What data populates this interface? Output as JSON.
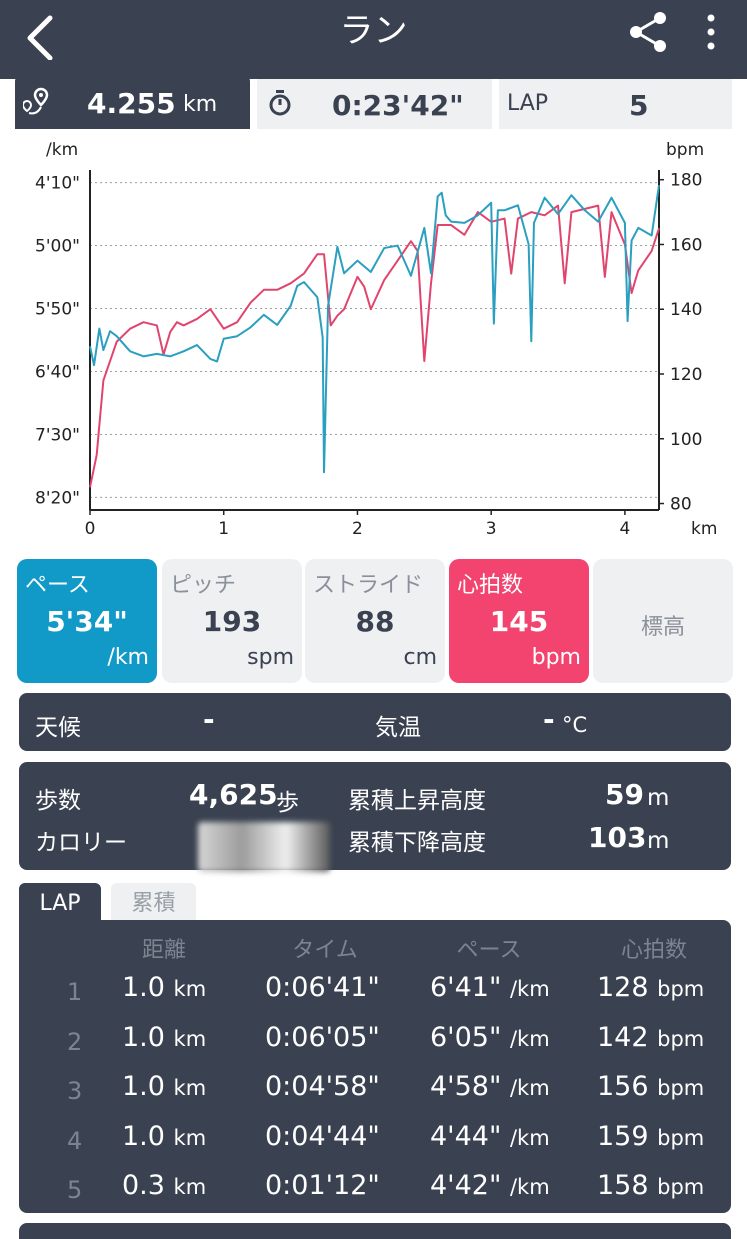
{
  "header": {
    "title": "ラン",
    "back_icon": "chevron-left-icon",
    "share_icon": "share-icon",
    "more_icon": "more-vertical-icon"
  },
  "summary": {
    "distance": {
      "value": "4.255",
      "unit": "km",
      "icon": "route-pin-icon"
    },
    "time": {
      "value": "0:23'42\"",
      "icon": "stopwatch-icon"
    },
    "lap": {
      "label": "LAP",
      "value": "5"
    }
  },
  "chart_data": {
    "type": "line",
    "left_axis_unit": "/km",
    "right_axis_unit": "bpm",
    "x_unit": "km",
    "left_ticks": [
      "4'10\"",
      "5'00\"",
      "5'50\"",
      "6'40\"",
      "7'30\"",
      "8'20\""
    ],
    "right_ticks": [
      "180",
      "160",
      "140",
      "120",
      "100",
      "80"
    ],
    "x_ticks": [
      "0",
      "1",
      "2",
      "3",
      "4"
    ],
    "xlim": [
      0,
      4.255
    ],
    "hr_ylim": [
      78,
      183
    ],
    "pace_ylim_sec": [
      240,
      510
    ],
    "grid": true,
    "series": [
      {
        "color": "#e0456e",
        "axis": "right",
        "x": [
          0,
          0.05,
          0.1,
          0.15,
          0.2,
          0.3,
          0.4,
          0.5,
          0.55,
          0.6,
          0.65,
          0.7,
          0.8,
          0.9,
          1.0,
          1.1,
          1.2,
          1.3,
          1.4,
          1.5,
          1.6,
          1.7,
          1.75,
          1.8,
          1.85,
          1.9,
          2.0,
          2.05,
          2.1,
          2.2,
          2.3,
          2.4,
          2.45,
          2.5,
          2.55,
          2.6,
          2.7,
          2.8,
          2.9,
          3.0,
          3.1,
          3.15,
          3.2,
          3.3,
          3.4,
          3.5,
          3.55,
          3.6,
          3.7,
          3.8,
          3.85,
          3.9,
          4.0,
          4.05,
          4.1,
          4.2,
          4.255
        ],
        "values": [
          85,
          95,
          118,
          124,
          130,
          134,
          136,
          135,
          126,
          133,
          136,
          135,
          137,
          140,
          134,
          136,
          142,
          146,
          146,
          148,
          151,
          157,
          157,
          135,
          138,
          140,
          150,
          147,
          140,
          149,
          155,
          161,
          158,
          124,
          148,
          166,
          166,
          163,
          170,
          167,
          168,
          151,
          168,
          170,
          169,
          172,
          148,
          170,
          171,
          172,
          150,
          170,
          160,
          145,
          152,
          158,
          165
        ]
      },
      {
        "color": "#2a9fc0",
        "axis": "left",
        "x": [
          0,
          0.03,
          0.07,
          0.1,
          0.15,
          0.2,
          0.3,
          0.4,
          0.5,
          0.6,
          0.7,
          0.8,
          0.9,
          0.95,
          1.0,
          1.1,
          1.2,
          1.3,
          1.4,
          1.5,
          1.55,
          1.6,
          1.65,
          1.7,
          1.74,
          1.75,
          1.78,
          1.85,
          1.9,
          2.0,
          2.1,
          2.2,
          2.3,
          2.4,
          2.5,
          2.55,
          2.6,
          2.63,
          2.66,
          2.7,
          2.8,
          2.9,
          3.0,
          3.02,
          3.05,
          3.1,
          3.2,
          3.28,
          3.3,
          3.32,
          3.4,
          3.5,
          3.6,
          3.7,
          3.8,
          3.9,
          4.0,
          4.02,
          4.05,
          4.1,
          4.2,
          4.255
        ],
        "values_sec": [
          380,
          395,
          366,
          383,
          368,
          372,
          384,
          388,
          386,
          388,
          384,
          379,
          390,
          392,
          374,
          372,
          365,
          355,
          363,
          348,
          332,
          329,
          335,
          341,
          373,
          480,
          348,
          301,
          322,
          312,
          321,
          302,
          300,
          324,
          286,
          322,
          261,
          258,
          276,
          281,
          282,
          276,
          266,
          362,
          272,
          272,
          268,
          299,
          376,
          282,
          262,
          275,
          260,
          272,
          281,
          262,
          282,
          360,
          296,
          286,
          292,
          252
        ]
      }
    ]
  },
  "metrics": [
    {
      "label": "ペース",
      "value": "5'34\"",
      "unit": "/km",
      "state": "active-pace"
    },
    {
      "label": "ピッチ",
      "value": "193",
      "unit": "spm",
      "state": ""
    },
    {
      "label": "ストライド",
      "value": "88",
      "unit": "cm",
      "state": ""
    },
    {
      "label": "心拍数",
      "value": "145",
      "unit": "bpm",
      "state": "active-hr"
    },
    {
      "label": "標高",
      "value": "",
      "unit": "",
      "state": "elev"
    }
  ],
  "weather": {
    "label": "天候",
    "value": "-",
    "temp_label": "気温",
    "temp_value": "-",
    "temp_unit": "°C"
  },
  "stats": {
    "steps_label": "歩数",
    "steps_value": "4,625",
    "steps_unit": "歩",
    "calorie_label": "カロリー",
    "ascent_label": "累積上昇高度",
    "ascent_value": "59",
    "ascent_unit": "m",
    "descent_label": "累積下降高度",
    "descent_value": "103",
    "descent_unit": "m"
  },
  "lap_tabs": {
    "lap": "LAP",
    "cumulative": "累積"
  },
  "lap_table": {
    "headers": [
      "距離",
      "タイム",
      "ペース",
      "心拍数"
    ],
    "rows": [
      {
        "no": "1",
        "dist": "1.0",
        "dist_unit": "km",
        "time": "0:06'41\"",
        "pace": "6'41\"",
        "pace_unit": "/km",
        "hr": "128",
        "hr_unit": "bpm"
      },
      {
        "no": "2",
        "dist": "1.0",
        "dist_unit": "km",
        "time": "0:06'05\"",
        "pace": "6'05\"",
        "pace_unit": "/km",
        "hr": "142",
        "hr_unit": "bpm"
      },
      {
        "no": "3",
        "dist": "1.0",
        "dist_unit": "km",
        "time": "0:04'58\"",
        "pace": "4'58\"",
        "pace_unit": "/km",
        "hr": "156",
        "hr_unit": "bpm"
      },
      {
        "no": "4",
        "dist": "1.0",
        "dist_unit": "km",
        "time": "0:04'44\"",
        "pace": "4'44\"",
        "pace_unit": "/km",
        "hr": "159",
        "hr_unit": "bpm"
      },
      {
        "no": "5",
        "dist": "0.3",
        "dist_unit": "km",
        "time": "0:01'12\"",
        "pace": "4'42\"",
        "pace_unit": "/km",
        "hr": "158",
        "hr_unit": "bpm"
      }
    ]
  }
}
